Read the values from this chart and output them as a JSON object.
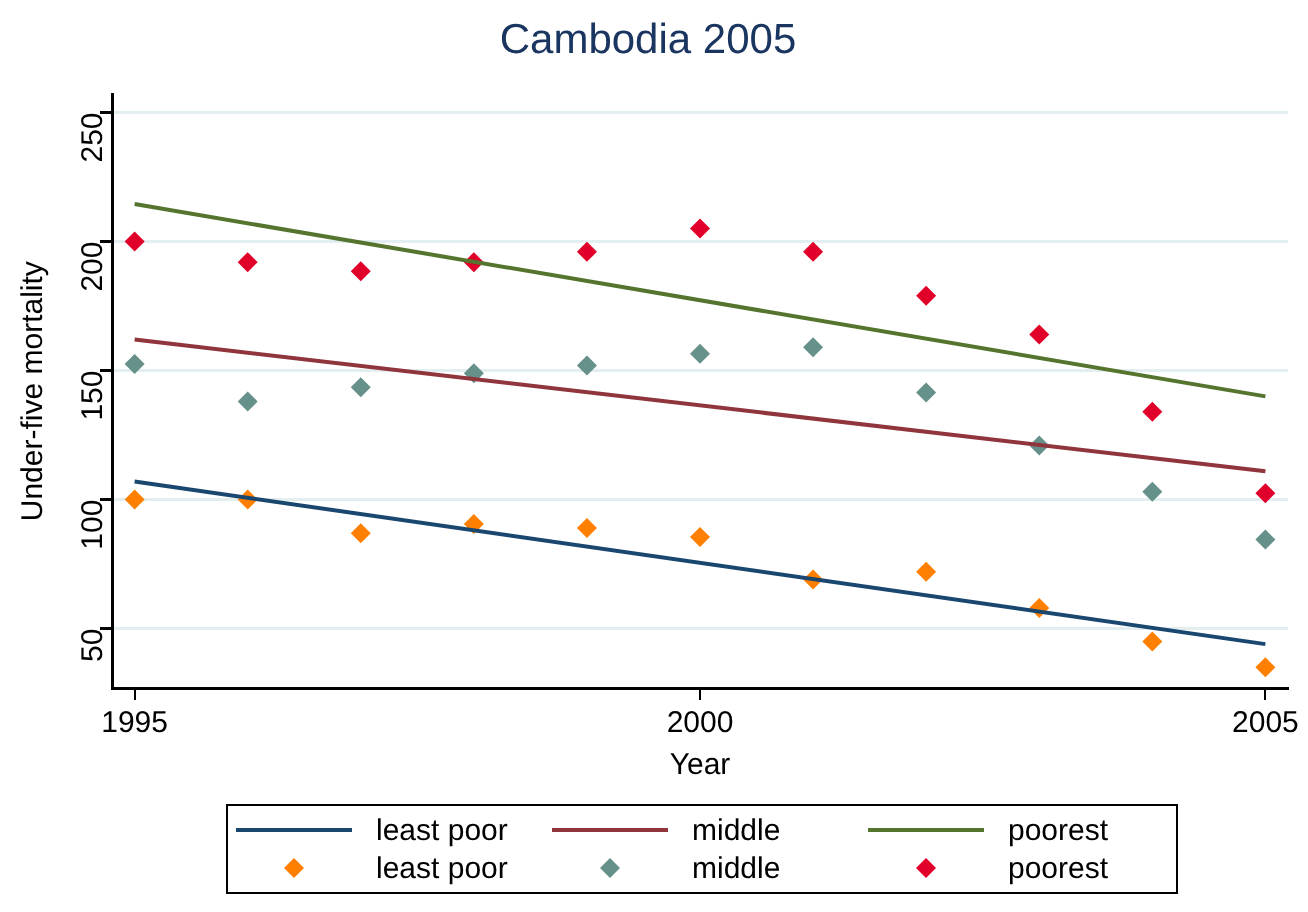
{
  "chart_data": {
    "type": "scatter",
    "title": "Cambodia 2005",
    "xlabel": "Year",
    "ylabel": "Under-five mortality",
    "xlim": [
      1994.8,
      2005.2
    ],
    "xticks": [
      1995,
      2000,
      2005
    ],
    "ylim": [
      27,
      257
    ],
    "yticks": [
      50,
      100,
      150,
      200,
      250
    ],
    "grid": "y",
    "legend": "bottom",
    "series": [
      {
        "name": "least poor",
        "type": "line",
        "marker": "none",
        "color": "#1a476f",
        "x": [
          1995,
          2005
        ],
        "values": [
          107,
          44
        ]
      },
      {
        "name": "middle",
        "type": "line",
        "marker": "none",
        "color": "#90353b",
        "x": [
          1995,
          2005
        ],
        "values": [
          162,
          111
        ]
      },
      {
        "name": "poorest",
        "type": "line",
        "marker": "none",
        "color": "#55752f",
        "x": [
          1995,
          2005
        ],
        "values": [
          214.5,
          140
        ]
      },
      {
        "name": "least poor",
        "type": "scatter",
        "marker": "diamond",
        "color": "#ff8000",
        "x": [
          1995,
          1996,
          1997,
          1998,
          1999,
          2000,
          2001,
          2002,
          2003,
          2004,
          2005
        ],
        "values": [
          100,
          100,
          87,
          90.5,
          89,
          85.5,
          69,
          72,
          58,
          45,
          35
        ]
      },
      {
        "name": "middle",
        "type": "scatter",
        "marker": "diamond",
        "color": "#66918a",
        "x": [
          1995,
          1996,
          1997,
          1998,
          1999,
          2000,
          2001,
          2002,
          2003,
          2004,
          2005
        ],
        "values": [
          152.5,
          138,
          143.5,
          149,
          152,
          156.5,
          159,
          141.5,
          121,
          103,
          84.5
        ]
      },
      {
        "name": "poorest",
        "type": "scatter",
        "marker": "diamond",
        "color": "#e0002a",
        "x": [
          1995,
          1996,
          1997,
          1998,
          1999,
          2000,
          2001,
          2002,
          2003,
          2004,
          2005
        ],
        "values": [
          200,
          192,
          188.5,
          192,
          196,
          205,
          196,
          179,
          164,
          134,
          102.5
        ]
      }
    ]
  }
}
